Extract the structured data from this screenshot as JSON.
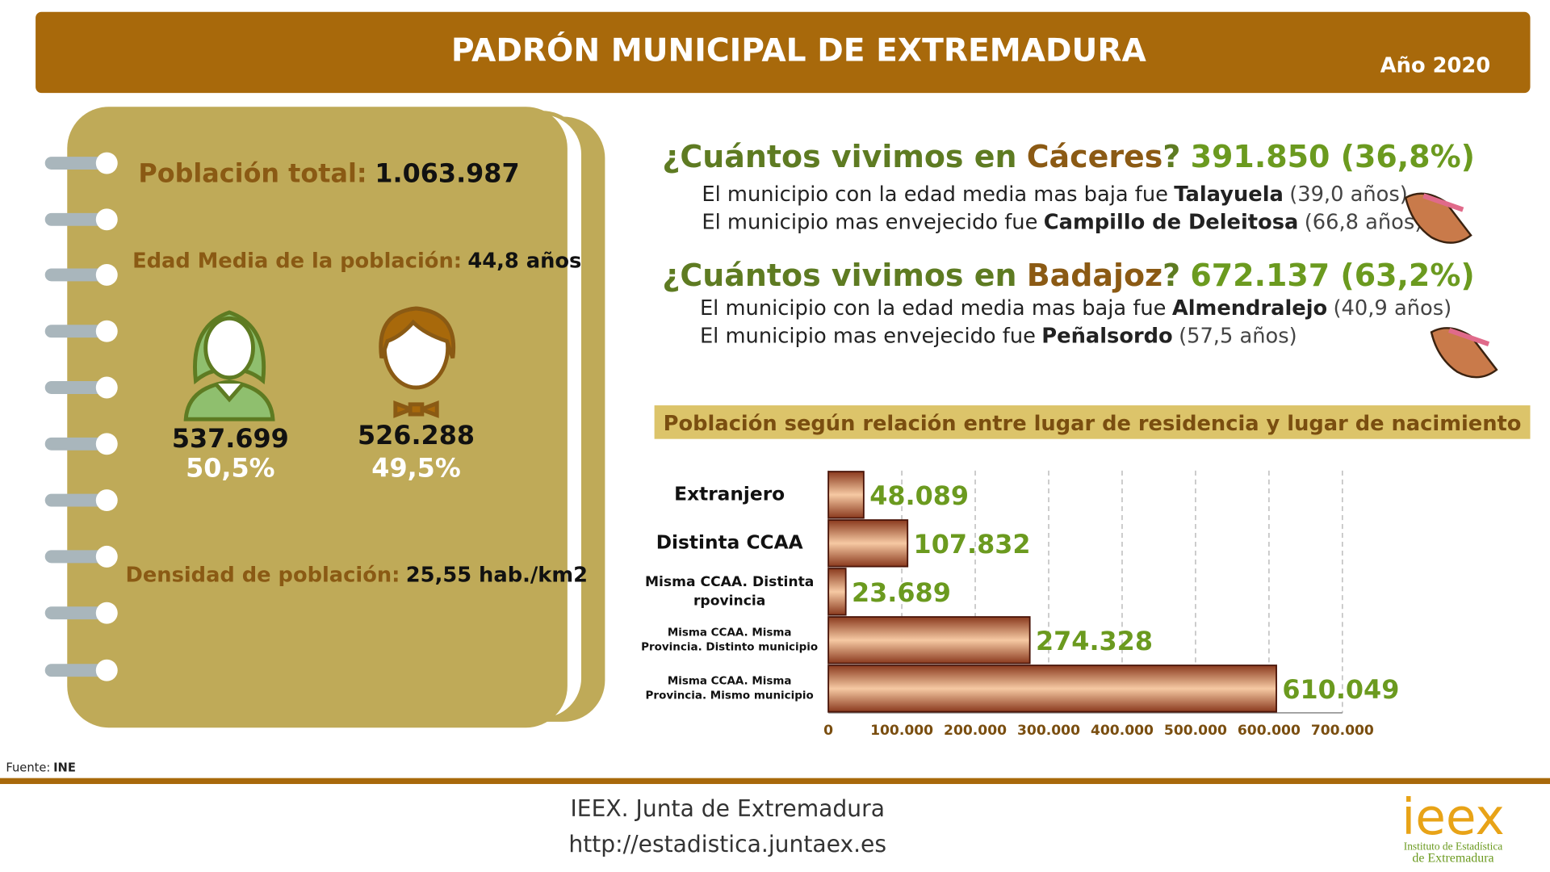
{
  "header": {
    "title": "PADRÓN MUNICIPAL DE EXTREMADURA",
    "year": "Año 2020"
  },
  "summary": {
    "total_label": "Población total:",
    "total_value": "1.063.987",
    "age_label": "Edad Media de la población:",
    "age_value": "44,8 años",
    "women": {
      "count": "537.699",
      "share": "50,5%"
    },
    "men": {
      "count": "526.288",
      "share": "49,5%"
    },
    "density_label": "Densidad de población:",
    "density_value": "25,55 hab./km2"
  },
  "provinces": [
    {
      "question": "¿Cuántos vivimos en",
      "name": "Cáceres",
      "mark": "?",
      "figure": "391.850 (36,8%)",
      "lines": [
        {
          "text": "El municipio con la edad media mas baja fue",
          "place": "Talayuela",
          "detail": "(39,0 años)"
        },
        {
          "text": "El municipio mas envejecido fue",
          "place": "Campillo de Deleitosa",
          "detail": "(66,8 años)"
        }
      ]
    },
    {
      "question": "¿Cuántos vivimos en",
      "name": "Badajoz",
      "mark": "?",
      "figure": "672.137 (63,2%)",
      "lines": [
        {
          "text": "El municipio con la edad media mas baja fue",
          "place": "Almendralejo",
          "detail": "(40,9 años)"
        },
        {
          "text": "El municipio mas envejecido fue",
          "place": "Peñalsordo",
          "detail": "(57,5 años)"
        }
      ]
    }
  ],
  "chart_data": {
    "type": "bar",
    "orientation": "horizontal",
    "title": "Población según relación entre lugar de residencia y lugar de nacimiento",
    "categories": [
      "Extranjero",
      "Distinta CCAA",
      "Misma CCAA. Distinta rpovincia",
      "Misma CCAA. Misma Provincia. Distinto municipio",
      "Misma CCAA. Misma Provincia. Mismo municipio"
    ],
    "values": [
      48089,
      107832,
      23689,
      274328,
      610049
    ],
    "value_labels": [
      "48.089",
      "107.832",
      "23.689",
      "274.328",
      "610.049"
    ],
    "color": "#f6c9a3",
    "xlim": [
      0,
      700000
    ],
    "xticks": [
      0,
      {
        "value": 100000,
        "label": "100.000"
      },
      {
        "value": 200000,
        "label": "200.000"
      },
      {
        "value": 300000,
        "label": "300.000"
      },
      {
        "value": 400000,
        "label": "400.000"
      },
      {
        "value": 500000,
        "label": "500.000"
      },
      {
        "value": 600000,
        "label": "600.000"
      },
      {
        "value": 700000,
        "label": "700.000"
      }
    ],
    "grid": true
  },
  "source": {
    "label": "Fuente:",
    "value": "INE"
  },
  "footer": {
    "line1": "IEEX. Junta de Extremadura",
    "line2": "http://estadistica.juntaex.es"
  },
  "logo": {
    "mark": "ieex",
    "line1": "Instituto de Estadística",
    "line2": "de Extremadura"
  }
}
